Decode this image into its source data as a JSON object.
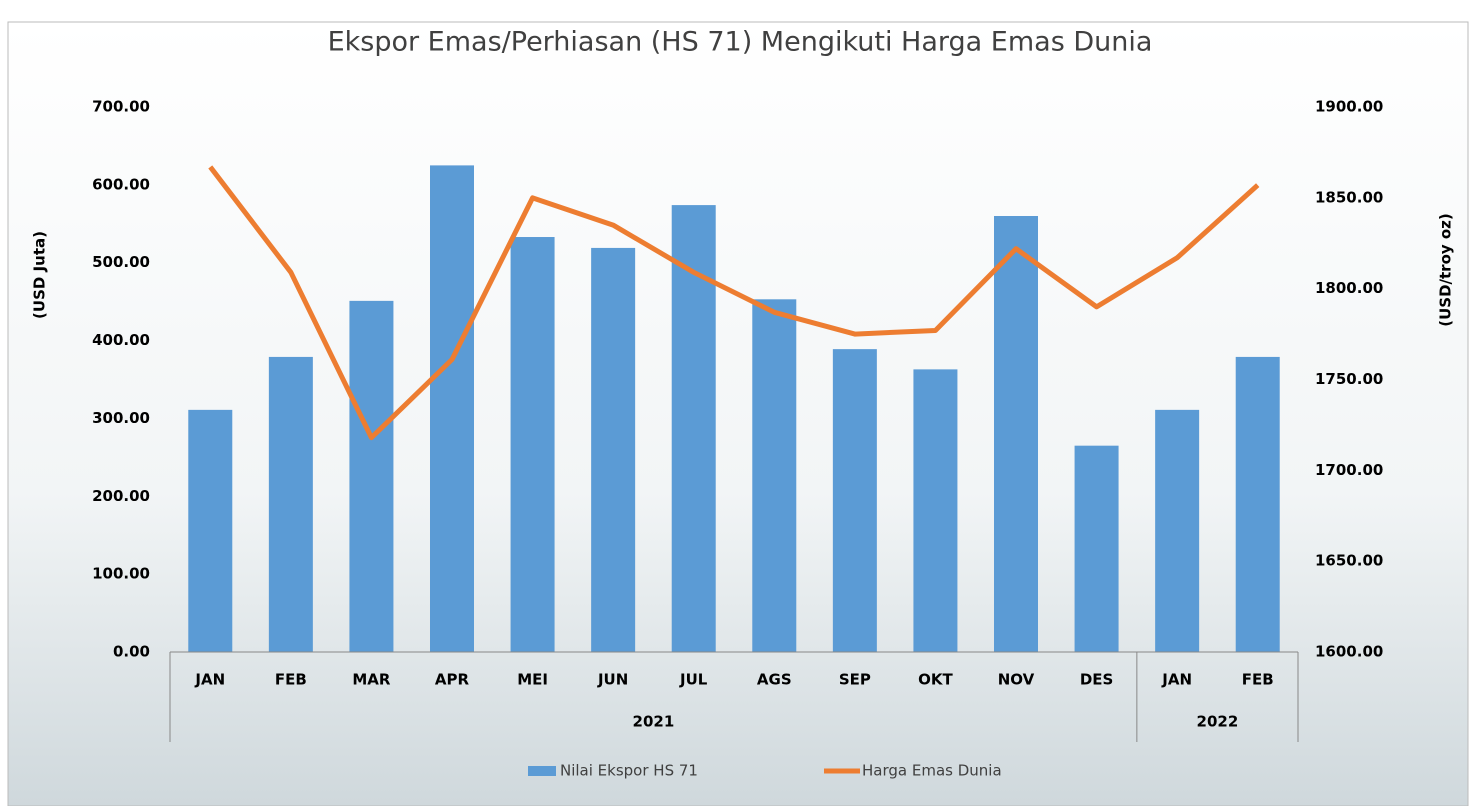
{
  "chart_data": {
    "type": "bar-line",
    "title": "Ekspor Emas/Perhiasan (HS 71) Mengikuti Harga Emas Dunia",
    "ylabel": "(USD Juta)",
    "y2label": "(USD/troy oz)",
    "categories": [
      "JAN",
      "FEB",
      "MAR",
      "APR",
      "MEI",
      "JUN",
      "JUL",
      "AGS",
      "SEP",
      "OKT",
      "NOV",
      "DES",
      "JAN",
      "FEB"
    ],
    "x_groups": [
      {
        "label": "2021",
        "count": 12
      },
      {
        "label": "2022",
        "count": 2
      }
    ],
    "series": [
      {
        "name": "Nilai Ekspor HS 71",
        "type": "bar",
        "color": "#5b9bd5",
        "values": [
          311,
          379,
          451,
          625,
          533,
          519,
          574,
          453,
          389,
          363,
          560,
          265,
          311,
          379
        ]
      },
      {
        "name": "Harga Emas Dunia",
        "type": "line",
        "axis": "y2",
        "color": "#ed7d31",
        "values": [
          1867,
          1809,
          1718,
          1761,
          1850,
          1835,
          1809,
          1787,
          1775,
          1777,
          1822,
          1790,
          1817,
          1857
        ]
      }
    ],
    "ylim": [
      0,
      700
    ],
    "yticks": [
      {
        "value": 0,
        "label": "0.00"
      },
      {
        "value": 100,
        "label": "100.00"
      },
      {
        "value": 200,
        "label": "200.00"
      },
      {
        "value": 300,
        "label": "300.00"
      },
      {
        "value": 400,
        "label": "400.00"
      },
      {
        "value": 500,
        "label": "500.00"
      },
      {
        "value": 600,
        "label": "600.00"
      },
      {
        "value": 700,
        "label": "700.00"
      }
    ],
    "y2lim": [
      1600,
      1900
    ],
    "y2ticks": [
      {
        "value": 1600,
        "label": "1600.00"
      },
      {
        "value": 1650,
        "label": "1650.00"
      },
      {
        "value": 1700,
        "label": "1700.00"
      },
      {
        "value": 1750,
        "label": "1750.00"
      },
      {
        "value": 1800,
        "label": "1800.00"
      },
      {
        "value": 1850,
        "label": "1850.00"
      },
      {
        "value": 1900,
        "label": "1900.00"
      }
    ],
    "legend": "bottom"
  }
}
